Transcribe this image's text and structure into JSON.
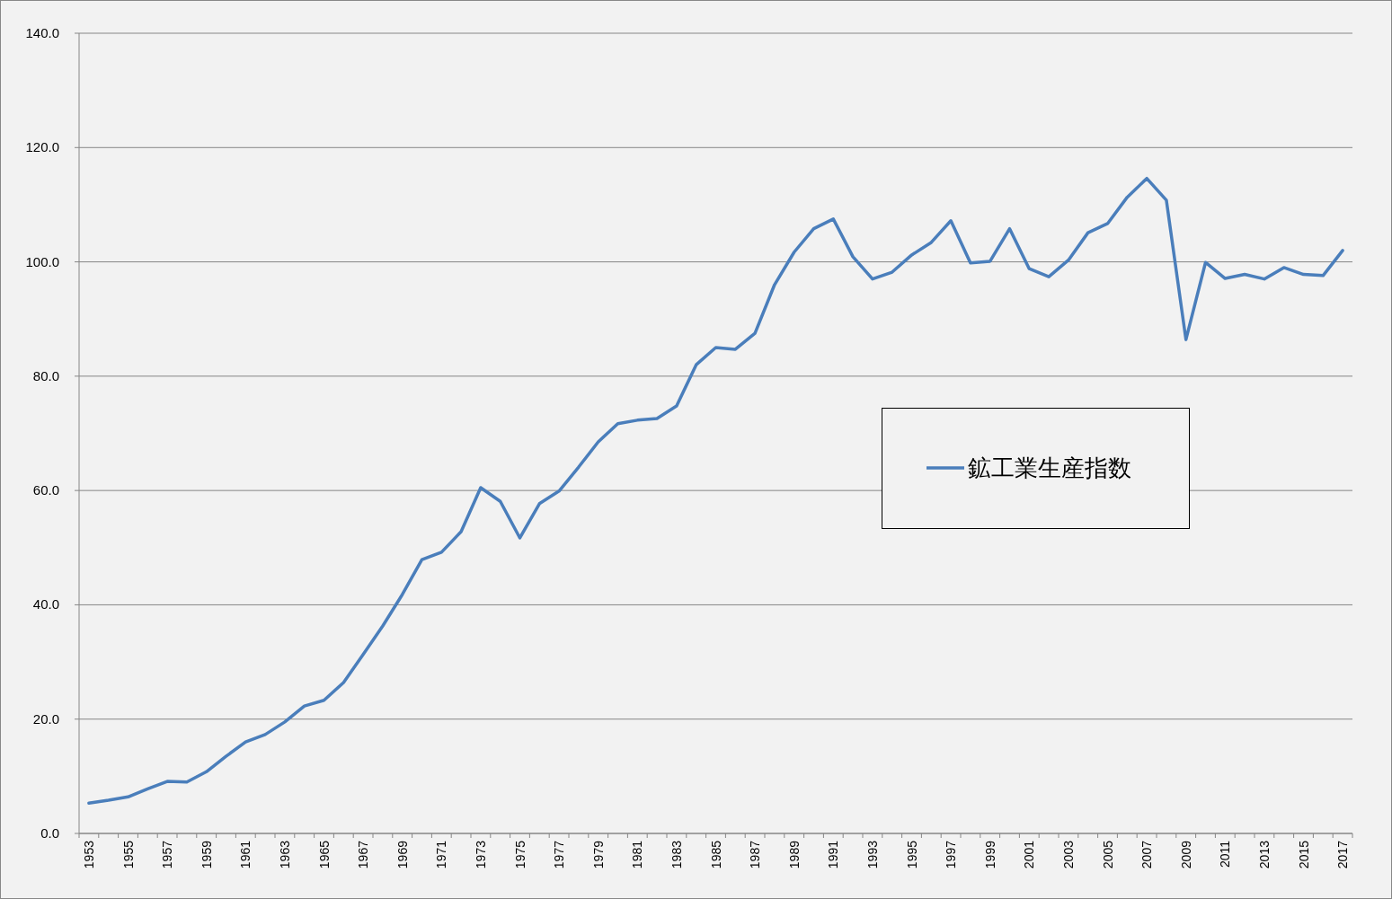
{
  "chart_data": {
    "type": "line",
    "legend": "right",
    "grid": "y",
    "marker": "none",
    "line_style": "solid",
    "categories": [
      "1953",
      null,
      "1955",
      null,
      "1957",
      null,
      "1959",
      null,
      "1961",
      null,
      "1963",
      null,
      "1965",
      null,
      "1967",
      null,
      "1969",
      null,
      "1971",
      null,
      "1973",
      null,
      "1975",
      null,
      "1977",
      null,
      "1979",
      null,
      "1981",
      null,
      "1983",
      null,
      "1985",
      null,
      "1987",
      null,
      "1989",
      null,
      "1991",
      null,
      "1993",
      null,
      "1995",
      null,
      "1997",
      null,
      "1999",
      null,
      "2001",
      null,
      "2003",
      null,
      "2005",
      null,
      "2007",
      null,
      "2009",
      null,
      "2011",
      null,
      "2013",
      null,
      "2015",
      null,
      "2017"
    ],
    "ylim": [
      0,
      140
    ],
    "yticks": [
      {
        "value": 0,
        "label": "0.0"
      },
      {
        "value": 20,
        "label": "20.0"
      },
      {
        "value": 40,
        "label": "40.0"
      },
      {
        "value": 60,
        "label": "60.0"
      },
      {
        "value": 80,
        "label": "80.0"
      },
      {
        "value": 100,
        "label": "100.0"
      },
      {
        "value": 120,
        "label": "120.0"
      },
      {
        "value": 140,
        "label": "140.0"
      }
    ],
    "series": [
      {
        "name": "鉱工業生産指数",
        "color": "#4a7ebb",
        "values": [
          5.3,
          5.8,
          6.4,
          7.8,
          9.1,
          9.0,
          10.8,
          13.5,
          16.0,
          17.3,
          19.5,
          22.3,
          23.3,
          26.4,
          31.3,
          36.3,
          41.8,
          47.9,
          49.2,
          52.8,
          60.5,
          58.1,
          51.7,
          57.7,
          59.9,
          64.1,
          68.5,
          71.7,
          72.3,
          72.6,
          74.8,
          82.0,
          85.0,
          84.7,
          87.5,
          96.0,
          101.7,
          105.8,
          107.5,
          100.9,
          97.0,
          98.2,
          101.2,
          103.4,
          107.2,
          99.8,
          100.1,
          105.8,
          98.8,
          97.4,
          100.3,
          105.1,
          106.7,
          111.3,
          114.6,
          110.8,
          86.4,
          99.9,
          97.1,
          97.8,
          97.0,
          99.0,
          97.8,
          97.6,
          102.0
        ]
      }
    ]
  }
}
